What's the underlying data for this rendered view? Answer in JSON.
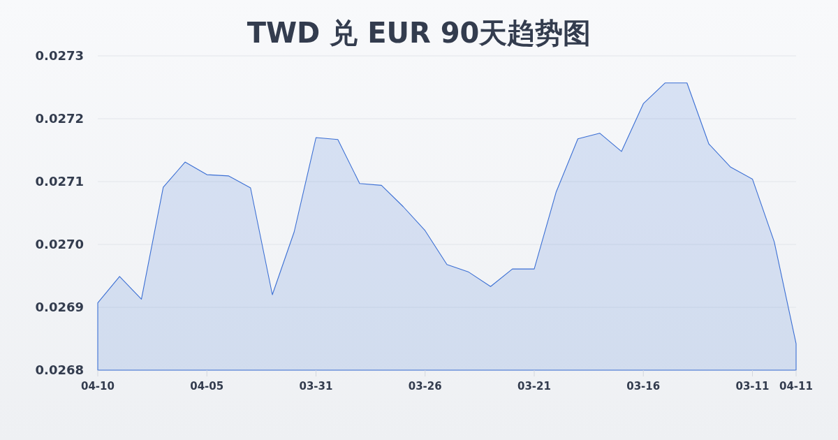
{
  "chart_data": {
    "type": "area",
    "title": "TWD 兑 EUR 90天趋势图",
    "categories": [
      "04-10",
      null,
      null,
      null,
      null,
      "04-05",
      null,
      null,
      null,
      null,
      "03-31",
      null,
      null,
      null,
      null,
      "03-26",
      null,
      null,
      null,
      null,
      "03-21",
      null,
      null,
      null,
      null,
      "03-16",
      null,
      null,
      null,
      null,
      "03-11",
      null,
      "04-11"
    ],
    "values": [
      0.026907,
      0.026949,
      0.026913,
      0.027091,
      0.027131,
      0.027111,
      0.027109,
      0.02709,
      0.02692,
      0.02702,
      0.02717,
      0.027167,
      0.027097,
      0.027094,
      0.02706,
      0.027022,
      0.026968,
      0.026956,
      0.026933,
      0.026961,
      0.026961,
      0.027083,
      0.027168,
      0.027177,
      0.027148,
      0.027224,
      0.027257,
      0.027257,
      0.02716,
      0.027123,
      0.027104,
      0.027004,
      0.026842
    ],
    "color": "#3b6fd4",
    "ylim": [
      0.0268,
      0.0273
    ],
    "yticks": [
      0.0268,
      0.0269,
      {
        "value": 0.027,
        "label": "0.0270"
      },
      0.0271,
      0.0272,
      0.0273
    ],
    "grid": "y"
  }
}
